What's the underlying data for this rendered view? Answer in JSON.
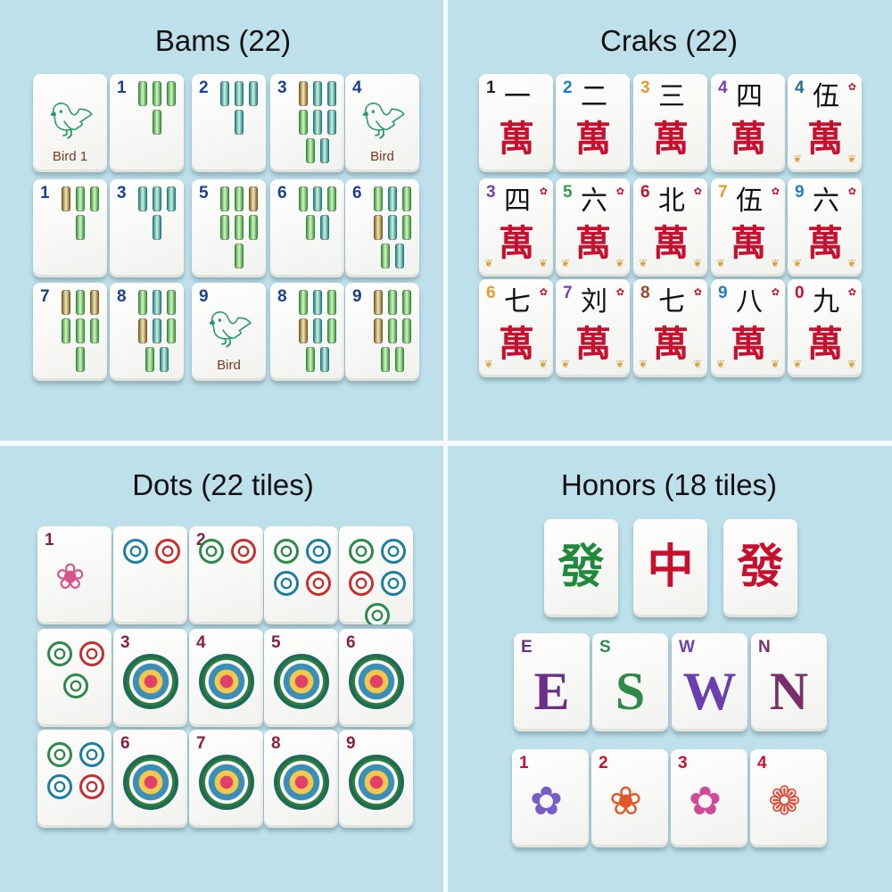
{
  "colors": {
    "background": "#bde0ea",
    "bam_green": "#3aa34a",
    "bam_blue": "#1d8fb0",
    "bam_brown": "#a0652a",
    "crak_red": "#c8102e",
    "gold": "#d4a640"
  },
  "sections": {
    "bams": {
      "title": "Bams (22)",
      "tiles": [
        {
          "type": "bird",
          "label": "Bird 1",
          "icon": "hummingbird-icon"
        },
        {
          "num": "1",
          "sticks": [
            "g",
            "g",
            "g",
            "g"
          ]
        },
        {
          "num": "2",
          "sticks": [
            "b",
            "b",
            "b",
            "b"
          ]
        },
        {
          "num": "3",
          "sticks": [
            "r",
            "b",
            "b",
            "g",
            "b",
            "b",
            "g",
            "b"
          ]
        },
        {
          "type": "bird",
          "num": "4",
          "label": "Bird",
          "icon": "hummingbird-icon"
        },
        {
          "num": "1",
          "sticks": [
            "r",
            "g",
            "g",
            "g"
          ]
        },
        {
          "num": "3",
          "sticks": [
            "b",
            "b",
            "b",
            "b"
          ]
        },
        {
          "num": "5",
          "sticks": [
            "g",
            "g",
            "r",
            "g",
            "g",
            "g",
            "g"
          ]
        },
        {
          "num": "6",
          "sticks": [
            "g",
            "b",
            "g",
            "g",
            "b"
          ]
        },
        {
          "num": "6",
          "sticks": [
            "g",
            "b",
            "g",
            "r",
            "b",
            "g",
            "g",
            "b"
          ]
        },
        {
          "num": "7",
          "sticks": [
            "r",
            "g",
            "r",
            "g",
            "g",
            "g",
            "g"
          ]
        },
        {
          "num": "8",
          "sticks": [
            "g",
            "b",
            "g",
            "r",
            "b",
            "g",
            "g",
            "b"
          ]
        },
        {
          "type": "bird",
          "num": "9",
          "label": "Bird",
          "icon": "hummingbird-icon"
        },
        {
          "num": "8",
          "sticks": [
            "g",
            "b",
            "g",
            "r",
            "b",
            "g",
            "g",
            "b"
          ]
        },
        {
          "num": "9",
          "sticks": [
            "r",
            "g",
            "g",
            "r",
            "g",
            "g",
            "g",
            "g"
          ]
        }
      ]
    },
    "craks": {
      "title": "Craks (22)",
      "tiles": [
        {
          "num": "1",
          "numeral": "一",
          "wan": "萬",
          "color": "#222"
        },
        {
          "num": "2",
          "numeral": "二",
          "wan": "萬",
          "color": "#1d7fc4"
        },
        {
          "num": "3",
          "numeral": "三",
          "wan": "萬",
          "color": "#e59a2a"
        },
        {
          "num": "4",
          "numeral": "四",
          "wan": "萬",
          "color": "#7a3fb0"
        },
        {
          "num": "4",
          "numeral": "伍",
          "wan": "萬",
          "color": "#1f6f8f",
          "seal": true
        },
        {
          "num": "3",
          "numeral": "四",
          "wan": "萬",
          "color": "#7a3fb0",
          "seal": true
        },
        {
          "num": "5",
          "numeral": "六",
          "wan": "萬",
          "color": "#2ea04a",
          "seal": true
        },
        {
          "num": "6",
          "numeral": "北",
          "wan": "萬",
          "color": "#c8102e",
          "seal": true
        },
        {
          "num": "7",
          "numeral": "伍",
          "wan": "萬",
          "color": "#e59a2a",
          "seal": true
        },
        {
          "num": "9",
          "numeral": "六",
          "wan": "萬",
          "color": "#1d7fc4",
          "seal": true
        },
        {
          "num": "6",
          "numeral": "七",
          "wan": "萬",
          "color": "#e59a2a",
          "seal": true
        },
        {
          "num": "7",
          "numeral": "刘",
          "wan": "萬",
          "color": "#7a3fb0",
          "seal": true
        },
        {
          "num": "8",
          "numeral": "七",
          "wan": "萬",
          "color": "#a0452a",
          "seal": true
        },
        {
          "num": "9",
          "numeral": "八",
          "wan": "萬",
          "color": "#1d7fc4",
          "seal": true
        },
        {
          "num": "0",
          "numeral": "九",
          "wan": "萬",
          "color": "#c8102e",
          "seal": true
        }
      ]
    },
    "dots": {
      "title": "Dots (22 tiles)",
      "tiles": [
        {
          "num": "1",
          "type": "lotus",
          "icon": "windmill-lotus-icon"
        },
        {
          "num": "",
          "type": "dots",
          "dots": [
            "#1d7fa0",
            "#c8302e"
          ]
        },
        {
          "num": "2",
          "type": "dots",
          "dots": [
            "#2e8a4a",
            "#c8302e"
          ]
        },
        {
          "num": "",
          "type": "dots",
          "dots": [
            "#2e8a4a",
            "#1d7fa0",
            "#1d7fa0",
            "#c8302e"
          ]
        },
        {
          "num": "",
          "type": "dots",
          "dots": [
            "#2e8a4a",
            "#1d7fa0",
            "#c8302e",
            "#1d7fa0",
            "#2e8a4a"
          ]
        },
        {
          "num": "",
          "type": "dots",
          "dots": [
            "#2e8a4a",
            "#c8302e",
            "#2e8a4a"
          ]
        },
        {
          "num": "3",
          "type": "medallion"
        },
        {
          "num": "4",
          "type": "medallion"
        },
        {
          "num": "5",
          "type": "medallion"
        },
        {
          "num": "6",
          "type": "medallion"
        },
        {
          "num": "",
          "type": "dots",
          "dots": [
            "#2e8a4a",
            "#1d7fa0",
            "#1d7fa0",
            "#c8302e"
          ]
        },
        {
          "num": "6",
          "type": "medallion"
        },
        {
          "num": "7",
          "type": "medallion"
        },
        {
          "num": "8",
          "type": "medallion"
        },
        {
          "num": "9",
          "type": "medallion"
        }
      ]
    },
    "honors": {
      "title": "Honors (18 tiles)",
      "dragons": [
        {
          "char": "發",
          "color": "#1f8a3a"
        },
        {
          "char": "中",
          "color": "#c8102e"
        },
        {
          "char": "發",
          "color": "#c8102e"
        }
      ],
      "winds": [
        {
          "num": "E",
          "letter": "E",
          "color": "#6a2f8a"
        },
        {
          "num": "S",
          "letter": "S",
          "color": "#2e8a4a"
        },
        {
          "num": "W",
          "letter": "W",
          "color": "#6a3fb0"
        },
        {
          "num": "N",
          "letter": "N",
          "color": "#7a2f6a"
        }
      ],
      "flowers": [
        {
          "num": "1",
          "icon": "peony-flower-icon",
          "glyph": "✿",
          "color": "#7a5cc8"
        },
        {
          "num": "2",
          "icon": "orange-flower-icon",
          "glyph": "❀",
          "color": "#e0582a"
        },
        {
          "num": "3",
          "icon": "pink-flower-icon",
          "glyph": "✿",
          "color": "#d04a9a"
        },
        {
          "num": "4",
          "icon": "red-flower-icon",
          "glyph": "❁",
          "color": "#e04a3a"
        }
      ]
    }
  }
}
